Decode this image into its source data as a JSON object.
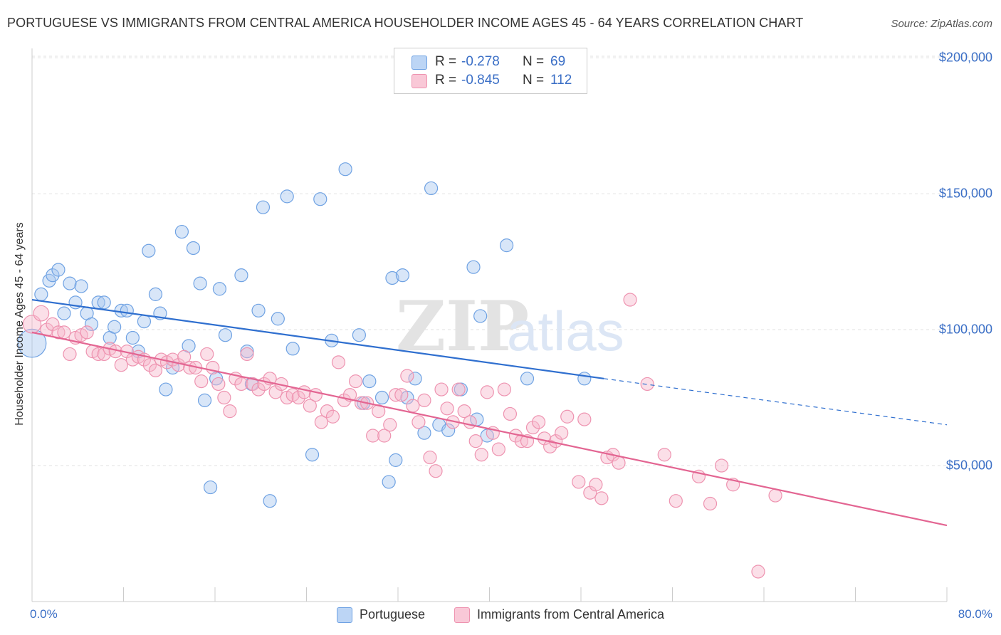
{
  "header": {
    "title": "PORTUGUESE VS IMMIGRANTS FROM CENTRAL AMERICA HOUSEHOLDER INCOME AGES 45 - 64 YEARS CORRELATION CHART",
    "source": "Source: ZipAtlas.com"
  },
  "watermark": {
    "zip": "ZIP",
    "atlas": "atlas"
  },
  "stats": {
    "rows": [
      {
        "r_label": "R =",
        "r_value": "-0.278",
        "n_label": "N =",
        "n_value": "69",
        "color": "#a9c8f0"
      },
      {
        "r_label": "R =",
        "r_value": "-0.845",
        "n_label": "N =",
        "n_value": "112",
        "color": "#f7b8cc"
      }
    ]
  },
  "legend": {
    "items": [
      {
        "label": "Portuguese",
        "color": "#a9c8f0"
      },
      {
        "label": "Immigrants from Central America",
        "color": "#f7b8cc"
      }
    ]
  },
  "chart_data": {
    "type": "scatter",
    "ylabel": "Householder Income Ages 45 - 64 years",
    "x_tick_labels": {
      "min": "0.0%",
      "max": "80.0%"
    },
    "y_tick_labels": [
      "$50,000",
      "$100,000",
      "$150,000",
      "$200,000"
    ],
    "xlim": [
      0,
      80
    ],
    "ylim": [
      0,
      205000
    ],
    "y_ticks": [
      50000,
      100000,
      150000,
      200000
    ],
    "grid": true,
    "legend_position": "bottom",
    "series": [
      {
        "name": "Portuguese",
        "color": "#6fa2e3",
        "fill": "#a9c8f0",
        "line_color": "#2f6fcf",
        "trend": {
          "x0": 0,
          "y0": 111000,
          "x1": 50,
          "y1": 82000,
          "dash_to_x": 80,
          "dash_to_y": 65000
        },
        "points": [
          [
            0.0,
            95000,
            2.2
          ],
          [
            0.8,
            113000,
            1
          ],
          [
            1.5,
            118000,
            1
          ],
          [
            1.8,
            120000,
            1
          ],
          [
            2.3,
            122000,
            1
          ],
          [
            2.8,
            106000,
            1
          ],
          [
            3.3,
            117000,
            1
          ],
          [
            3.8,
            110000,
            1
          ],
          [
            4.3,
            116000,
            1
          ],
          [
            4.8,
            106000,
            1
          ],
          [
            5.2,
            102000,
            1
          ],
          [
            5.8,
            110000,
            1
          ],
          [
            6.3,
            110000,
            1
          ],
          [
            6.8,
            97000,
            1
          ],
          [
            7.2,
            101000,
            1
          ],
          [
            7.8,
            107000,
            1
          ],
          [
            8.3,
            107000,
            1
          ],
          [
            8.8,
            97000,
            1
          ],
          [
            9.3,
            92000,
            1
          ],
          [
            9.8,
            103000,
            1
          ],
          [
            10.2,
            129000,
            1
          ],
          [
            10.8,
            113000,
            1
          ],
          [
            11.2,
            106000,
            1
          ],
          [
            11.7,
            78000,
            1
          ],
          [
            12.3,
            86000,
            1
          ],
          [
            13.1,
            136000,
            1
          ],
          [
            13.7,
            94000,
            1
          ],
          [
            14.1,
            130000,
            1
          ],
          [
            14.7,
            117000,
            1
          ],
          [
            15.1,
            74000,
            1
          ],
          [
            15.6,
            42000,
            1
          ],
          [
            16.1,
            82000,
            1
          ],
          [
            16.4,
            115000,
            1
          ],
          [
            16.9,
            98000,
            1
          ],
          [
            18.3,
            120000,
            1
          ],
          [
            18.8,
            92000,
            1
          ],
          [
            19.2,
            80000,
            1
          ],
          [
            19.8,
            107000,
            1
          ],
          [
            20.2,
            145000,
            1
          ],
          [
            20.8,
            37000,
            1
          ],
          [
            21.5,
            104000,
            1
          ],
          [
            22.3,
            149000,
            1
          ],
          [
            22.8,
            93000,
            1
          ],
          [
            24.5,
            54000,
            1
          ],
          [
            25.2,
            148000,
            1
          ],
          [
            26.2,
            96000,
            1
          ],
          [
            27.4,
            159000,
            1
          ],
          [
            28.6,
            98000,
            1
          ],
          [
            29.0,
            73000,
            1
          ],
          [
            29.5,
            81000,
            1
          ],
          [
            30.6,
            75000,
            1
          ],
          [
            31.2,
            44000,
            1
          ],
          [
            31.5,
            119000,
            1
          ],
          [
            31.8,
            52000,
            1
          ],
          [
            32.4,
            120000,
            1
          ],
          [
            32.8,
            75000,
            1
          ],
          [
            33.5,
            82000,
            1
          ],
          [
            34.3,
            62000,
            1
          ],
          [
            34.9,
            152000,
            1
          ],
          [
            35.6,
            65000,
            1
          ],
          [
            36.4,
            63000,
            1
          ],
          [
            37.5,
            78000,
            1
          ],
          [
            38.6,
            123000,
            1
          ],
          [
            38.9,
            67000,
            1
          ],
          [
            39.2,
            105000,
            1
          ],
          [
            39.8,
            61000,
            1
          ],
          [
            41.5,
            131000,
            1
          ],
          [
            43.3,
            82000,
            1
          ],
          [
            48.3,
            82000,
            1
          ]
        ]
      },
      {
        "name": "Immigrants from Central America",
        "color": "#ee93b0",
        "fill": "#f7b8cc",
        "line_color": "#e36592",
        "trend": {
          "x0": 0,
          "y0": 99000,
          "x1": 80,
          "y1": 28000
        },
        "points": [
          [
            0.0,
            102000,
            1.4
          ],
          [
            0.8,
            106000,
            1.2
          ],
          [
            1.3,
            100000,
            1
          ],
          [
            1.8,
            102000,
            1
          ],
          [
            2.3,
            99000,
            1
          ],
          [
            2.8,
            99000,
            1
          ],
          [
            3.3,
            91000,
            1
          ],
          [
            3.8,
            97000,
            1
          ],
          [
            4.3,
            98000,
            1
          ],
          [
            4.8,
            99000,
            1
          ],
          [
            5.3,
            92000,
            1
          ],
          [
            5.8,
            91000,
            1
          ],
          [
            6.3,
            91000,
            1
          ],
          [
            6.8,
            93000,
            1
          ],
          [
            7.3,
            92000,
            1
          ],
          [
            7.8,
            87000,
            1
          ],
          [
            8.3,
            92000,
            1
          ],
          [
            8.8,
            89000,
            1
          ],
          [
            9.3,
            90000,
            1
          ],
          [
            9.8,
            89000,
            1
          ],
          [
            10.3,
            87000,
            1
          ],
          [
            10.8,
            85000,
            1
          ],
          [
            11.3,
            89000,
            1
          ],
          [
            11.8,
            88000,
            1
          ],
          [
            12.3,
            89000,
            1
          ],
          [
            12.8,
            87000,
            1
          ],
          [
            13.3,
            90000,
            1
          ],
          [
            13.8,
            86000,
            1
          ],
          [
            14.3,
            86000,
            1
          ],
          [
            14.8,
            81000,
            1
          ],
          [
            15.3,
            91000,
            1
          ],
          [
            15.8,
            86000,
            1
          ],
          [
            16.3,
            80000,
            1
          ],
          [
            16.8,
            75000,
            1
          ],
          [
            17.3,
            70000,
            1
          ],
          [
            17.8,
            82000,
            1
          ],
          [
            18.3,
            80000,
            1
          ],
          [
            18.8,
            91000,
            1
          ],
          [
            19.3,
            80000,
            1
          ],
          [
            19.8,
            78000,
            1
          ],
          [
            20.3,
            80000,
            1
          ],
          [
            20.8,
            82000,
            1
          ],
          [
            21.3,
            77000,
            1
          ],
          [
            21.8,
            80000,
            1
          ],
          [
            22.3,
            75000,
            1
          ],
          [
            22.8,
            76000,
            1
          ],
          [
            23.3,
            75000,
            1
          ],
          [
            23.8,
            77000,
            1
          ],
          [
            24.3,
            72000,
            1
          ],
          [
            24.8,
            76000,
            1
          ],
          [
            25.3,
            66000,
            1
          ],
          [
            25.8,
            70000,
            1
          ],
          [
            26.3,
            68000,
            1
          ],
          [
            26.8,
            88000,
            1
          ],
          [
            27.3,
            74000,
            1
          ],
          [
            27.8,
            76000,
            1
          ],
          [
            28.3,
            81000,
            1
          ],
          [
            28.8,
            73000,
            1
          ],
          [
            29.3,
            73000,
            1
          ],
          [
            29.8,
            61000,
            1
          ],
          [
            30.3,
            70000,
            1
          ],
          [
            30.8,
            61000,
            1
          ],
          [
            31.3,
            65000,
            1
          ],
          [
            31.8,
            76000,
            1
          ],
          [
            32.3,
            76000,
            1
          ],
          [
            32.8,
            83000,
            1
          ],
          [
            33.3,
            72000,
            1
          ],
          [
            33.8,
            66000,
            1
          ],
          [
            34.3,
            74000,
            1
          ],
          [
            34.8,
            53000,
            1
          ],
          [
            35.3,
            48000,
            1
          ],
          [
            35.8,
            78000,
            1
          ],
          [
            36.3,
            71000,
            1
          ],
          [
            36.8,
            66000,
            1
          ],
          [
            37.3,
            78000,
            1
          ],
          [
            37.8,
            70000,
            1
          ],
          [
            38.3,
            66000,
            1
          ],
          [
            38.8,
            59000,
            1
          ],
          [
            39.3,
            54000,
            1
          ],
          [
            39.8,
            77000,
            1
          ],
          [
            40.3,
            62000,
            1
          ],
          [
            40.8,
            56000,
            1
          ],
          [
            41.3,
            78000,
            1
          ],
          [
            41.8,
            69000,
            1
          ],
          [
            42.3,
            61000,
            1
          ],
          [
            42.8,
            59000,
            1
          ],
          [
            43.3,
            59000,
            1
          ],
          [
            43.8,
            64000,
            1
          ],
          [
            44.3,
            66000,
            1
          ],
          [
            44.8,
            60000,
            1
          ],
          [
            45.3,
            57000,
            1
          ],
          [
            45.8,
            59000,
            1
          ],
          [
            46.3,
            62000,
            1
          ],
          [
            46.8,
            68000,
            1
          ],
          [
            47.8,
            44000,
            1
          ],
          [
            48.3,
            67000,
            1
          ],
          [
            48.8,
            40000,
            1
          ],
          [
            49.3,
            43000,
            1
          ],
          [
            49.8,
            38000,
            1
          ],
          [
            50.3,
            53000,
            1
          ],
          [
            50.8,
            54000,
            1
          ],
          [
            51.3,
            51000,
            1
          ],
          [
            52.3,
            111000,
            1
          ],
          [
            53.8,
            80000,
            1
          ],
          [
            55.3,
            54000,
            1
          ],
          [
            56.3,
            37000,
            1
          ],
          [
            58.3,
            46000,
            1
          ],
          [
            59.3,
            36000,
            1
          ],
          [
            60.3,
            50000,
            1
          ],
          [
            61.3,
            43000,
            1
          ],
          [
            63.5,
            11000,
            1
          ],
          [
            65.0,
            39000,
            1
          ]
        ]
      }
    ]
  }
}
